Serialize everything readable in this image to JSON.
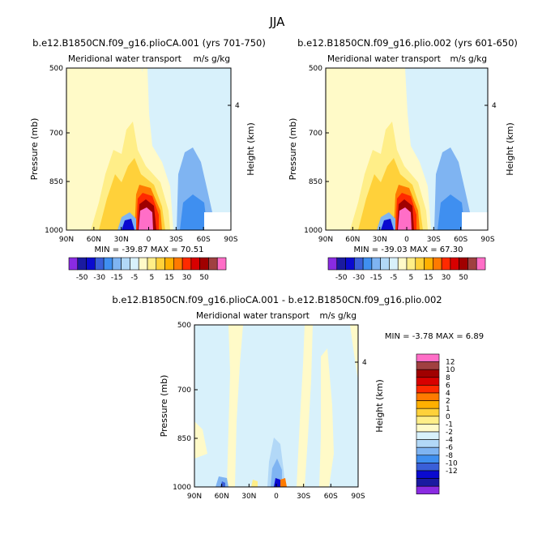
{
  "figure": {
    "season": "JJA"
  },
  "colors": {
    "palette": [
      "#8a2be2",
      "#1a1aa0",
      "#0a0ad0",
      "#3a5fd8",
      "#3f8ff0",
      "#7fb4f2",
      "#b2d8f7",
      "#d8f1fb",
      "#fffac8",
      "#ffee88",
      "#ffd13a",
      "#ffb000",
      "#ff7a00",
      "#ff2a00",
      "#d80000",
      "#a00000",
      "#a04040",
      "#ff6ec7"
    ]
  },
  "chart_data": [
    {
      "type": "heatmap",
      "title": "b.e12.B1850CN.f09_g16.plioCA.001 (yrs 701-750)",
      "subtitle_left": "Meridional water transport",
      "subtitle_right": "m/s g/kg",
      "ylabel": "Pressure (mb)",
      "ylabel_right": "Height (km)",
      "x_ticks": [
        "90N",
        "60N",
        "30N",
        "0",
        "30S",
        "60S",
        "90S"
      ],
      "y_ticks": [
        "500",
        "700",
        "850",
        "1000"
      ],
      "right_ticks": [
        "4"
      ],
      "stats": "MIN = -39.87   MAX =  70.51",
      "colorbar_levels": [
        "-50",
        "-30",
        "-15",
        "-5",
        "5",
        "15",
        "30",
        "50"
      ]
    },
    {
      "type": "heatmap",
      "title": "b.e12.B1850CN.f09_g16.plio.002 (yrs 601-650)",
      "subtitle_left": "Meridional water transport",
      "subtitle_right": "m/s g/kg",
      "ylabel": "Pressure (mb)",
      "ylabel_right": "Height (km)",
      "x_ticks": [
        "90N",
        "60N",
        "30N",
        "0",
        "30S",
        "60S",
        "90S"
      ],
      "y_ticks": [
        "500",
        "700",
        "850",
        "1000"
      ],
      "right_ticks": [
        "4"
      ],
      "stats": "MIN = -39.03   MAX =  67.30",
      "colorbar_levels": [
        "-50",
        "-30",
        "-15",
        "-5",
        "5",
        "15",
        "30",
        "50"
      ]
    },
    {
      "type": "heatmap",
      "title": "b.e12.B1850CN.f09_g16.plioCA.001 - b.e12.B1850CN.f09_g16.plio.002",
      "subtitle_left": "Meridional water transport",
      "subtitle_right": "m/s g/kg",
      "ylabel": "Pressure (mb)",
      "ylabel_right": "Height (km)",
      "x_ticks": [
        "90N",
        "60N",
        "30N",
        "0",
        "30S",
        "60S",
        "90S"
      ],
      "y_ticks": [
        "500",
        "700",
        "850",
        "1000"
      ],
      "right_ticks": [
        "4"
      ],
      "stats": "MIN =  -3.78   MAX =   6.89",
      "colorbar_levels": [
        "12",
        "10",
        "8",
        "6",
        "4",
        "2",
        "1",
        "0",
        "-1",
        "-2",
        "-4",
        "-6",
        "-8",
        "-10",
        "-12"
      ]
    }
  ]
}
